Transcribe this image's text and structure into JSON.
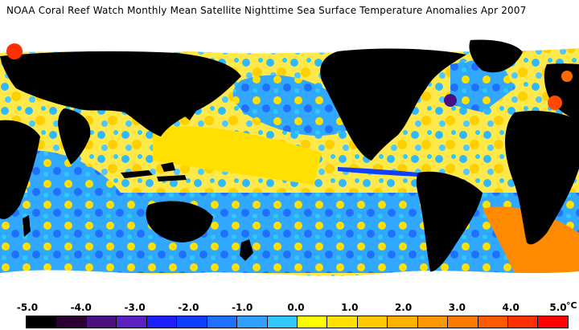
{
  "title": "NOAA Coral Reef Watch Monthly Mean Satellite Nighttime Sea Surface Temperature Anomalies   Apr 2007",
  "legend": {
    "unit": "°C",
    "ticks": [
      "-5.0",
      "-4.0",
      "-3.0",
      "-2.0",
      "-1.0",
      "0.0",
      "1.0",
      "2.0",
      "3.0",
      "4.0",
      "5.0"
    ],
    "colors": [
      "#000000",
      "#2a0033",
      "#4a1080",
      "#5a20c0",
      "#2020ff",
      "#1040ff",
      "#2070ff",
      "#30a0ff",
      "#30c8ff",
      "#ffff00",
      "#ffe000",
      "#ffc800",
      "#ffb000",
      "#ff9800",
      "#ff7a00",
      "#ff5a00",
      "#ff3000",
      "#ff0000"
    ]
  },
  "map_colors": {
    "land": "#000000",
    "ice": "#ffffff",
    "ocean_warm": "#ffe000",
    "ocean_cool": "#30a8ff",
    "ocean_cold": "#1050ff",
    "ocean_hot": "#ff6a00"
  }
}
